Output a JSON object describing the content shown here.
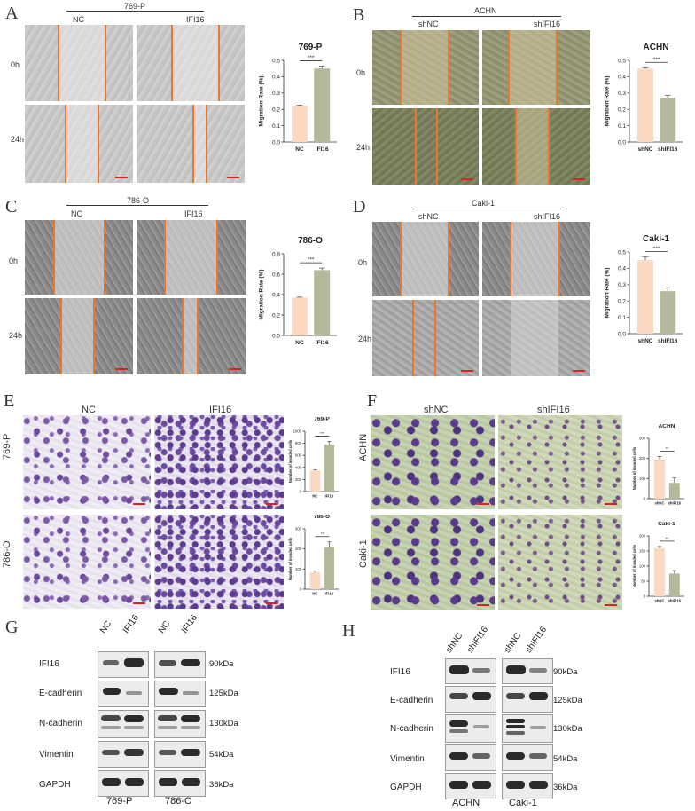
{
  "panels": {
    "A": {
      "letter": "A",
      "cell_line": "769-P",
      "group1": "NC",
      "group2": "IFI16",
      "row1": "0h",
      "row2": "24h"
    },
    "B": {
      "letter": "B",
      "cell_line": "ACHN",
      "group1": "shNC",
      "group2": "shIFI16",
      "row1": "0h",
      "row2": "24h"
    },
    "C": {
      "letter": "C",
      "cell_line": "786-O",
      "group1": "NC",
      "group2": "IFI16",
      "row1": "0h",
      "row2": "24h"
    },
    "D": {
      "letter": "D",
      "cell_line": "Caki-1",
      "group1": "shNC",
      "group2": "shIFI16",
      "row1": "0h",
      "row2": "24h"
    },
    "E": {
      "letter": "E",
      "group1": "NC",
      "group2": "IFI16",
      "row1": "769-P",
      "row2": "786-O"
    },
    "F": {
      "letter": "F",
      "group1": "shNC",
      "group2": "shIFI16",
      "row1": "ACHN",
      "row2": "Caki-1"
    },
    "G": {
      "letter": "G",
      "lanes": [
        "NC",
        "IFI16",
        "NC",
        "IFI16"
      ],
      "groups": [
        "769-P",
        "786-O"
      ]
    },
    "H": {
      "letter": "H",
      "lanes": [
        "shNC",
        "shIFI16",
        "shNC",
        "shIFI16"
      ],
      "groups": [
        "ACHN",
        "Caki-1"
      ]
    }
  },
  "blots": {
    "rows": [
      {
        "protein": "IFI16",
        "kda": "90kDa"
      },
      {
        "protein": "E-cadherin",
        "kda": "125kDa"
      },
      {
        "protein": "N-cadherin",
        "kda": "130kDa"
      },
      {
        "protein": "Vimentin",
        "kda": "54kDa"
      },
      {
        "protein": "GAPDH",
        "kda": "36kDa"
      }
    ]
  },
  "chart_data": [
    {
      "type": "bar",
      "title": "769-P",
      "categories": [
        "NC",
        "IFI16"
      ],
      "values": [
        0.22,
        0.45
      ],
      "errors": [
        0.005,
        0.015
      ],
      "ylabel": "Migration Rate (%)",
      "ylim": [
        0,
        0.5
      ],
      "yticks": [
        "0.0",
        "0.1",
        "0.2",
        "0.3",
        "0.4",
        "0.5"
      ],
      "significance": "***",
      "colors": [
        "#fbd9c0",
        "#b5b89a"
      ]
    },
    {
      "type": "bar",
      "title": "ACHN",
      "categories": [
        "shNC",
        "shIFI16"
      ],
      "values": [
        0.45,
        0.27
      ],
      "errors": [
        0.005,
        0.015
      ],
      "ylabel": "Migration Rate (%)",
      "ylim": [
        0,
        0.5
      ],
      "yticks": [
        "0.0",
        "0.1",
        "0.2",
        "0.3",
        "0.4",
        "0.5"
      ],
      "significance": "***",
      "colors": [
        "#fbd9c0",
        "#b5b89a"
      ]
    },
    {
      "type": "bar",
      "title": "786-O",
      "categories": [
        "NC",
        "IFI16"
      ],
      "values": [
        0.37,
        0.64
      ],
      "errors": [
        0.005,
        0.02
      ],
      "ylabel": "Migration Rate (%)",
      "ylim": [
        0,
        0.8
      ],
      "yticks": [
        "0.0",
        "0.2",
        "0.4",
        "0.6",
        "0.8"
      ],
      "significance": "***",
      "colors": [
        "#fbd9c0",
        "#b5b89a"
      ]
    },
    {
      "type": "bar",
      "title": "Caki-1",
      "categories": [
        "shNC",
        "shIFI16"
      ],
      "values": [
        0.45,
        0.26
      ],
      "errors": [
        0.02,
        0.025
      ],
      "ylabel": "Migration Rate (%)",
      "ylim": [
        0,
        0.5
      ],
      "yticks": [
        "0.0",
        "0.1",
        "0.2",
        "0.3",
        "0.4",
        "0.5"
      ],
      "significance": "***",
      "colors": [
        "#fbd9c0",
        "#b5b89a"
      ]
    },
    {
      "type": "bar",
      "title": "769-P",
      "categories": [
        "NC",
        "IFI16"
      ],
      "values": [
        350,
        780
      ],
      "errors": [
        10,
        50
      ],
      "ylabel": "Number of invaded cells",
      "ylim": [
        0,
        1000
      ],
      "yticks": [
        "0",
        "200",
        "400",
        "600",
        "800",
        "1000"
      ],
      "significance": "***",
      "colors": [
        "#fbd9c0",
        "#b5b89a"
      ]
    },
    {
      "type": "bar",
      "title": "786-O",
      "categories": [
        "NC",
        "IFI16"
      ],
      "values": [
        85,
        210
      ],
      "errors": [
        5,
        25
      ],
      "ylabel": "Number of invaded cells",
      "ylim": [
        0,
        300
      ],
      "yticks": [
        "0",
        "100",
        "200",
        "300"
      ],
      "significance": "**",
      "colors": [
        "#fbd9c0",
        "#b5b89a"
      ]
    },
    {
      "type": "bar",
      "title": "ACHN",
      "categories": [
        "shNC",
        "shIFI16"
      ],
      "values": [
        195,
        78
      ],
      "errors": [
        15,
        25
      ],
      "ylabel": "Number of invaded cells",
      "ylim": [
        0,
        300
      ],
      "yticks": [
        "0",
        "100",
        "200",
        "300"
      ],
      "significance": "**",
      "colors": [
        "#fbd9c0",
        "#b5b89a"
      ]
    },
    {
      "type": "bar",
      "title": "Caki-1",
      "categories": [
        "shNC",
        "shIFI16"
      ],
      "values": [
        160,
        75
      ],
      "errors": [
        5,
        10
      ],
      "ylabel": "Number of invaded cells",
      "ylim": [
        0,
        200
      ],
      "yticks": [
        "0",
        "50",
        "100",
        "150",
        "200"
      ],
      "significance": "**",
      "colors": [
        "#fbd9c0",
        "#b5b89a"
      ]
    }
  ]
}
